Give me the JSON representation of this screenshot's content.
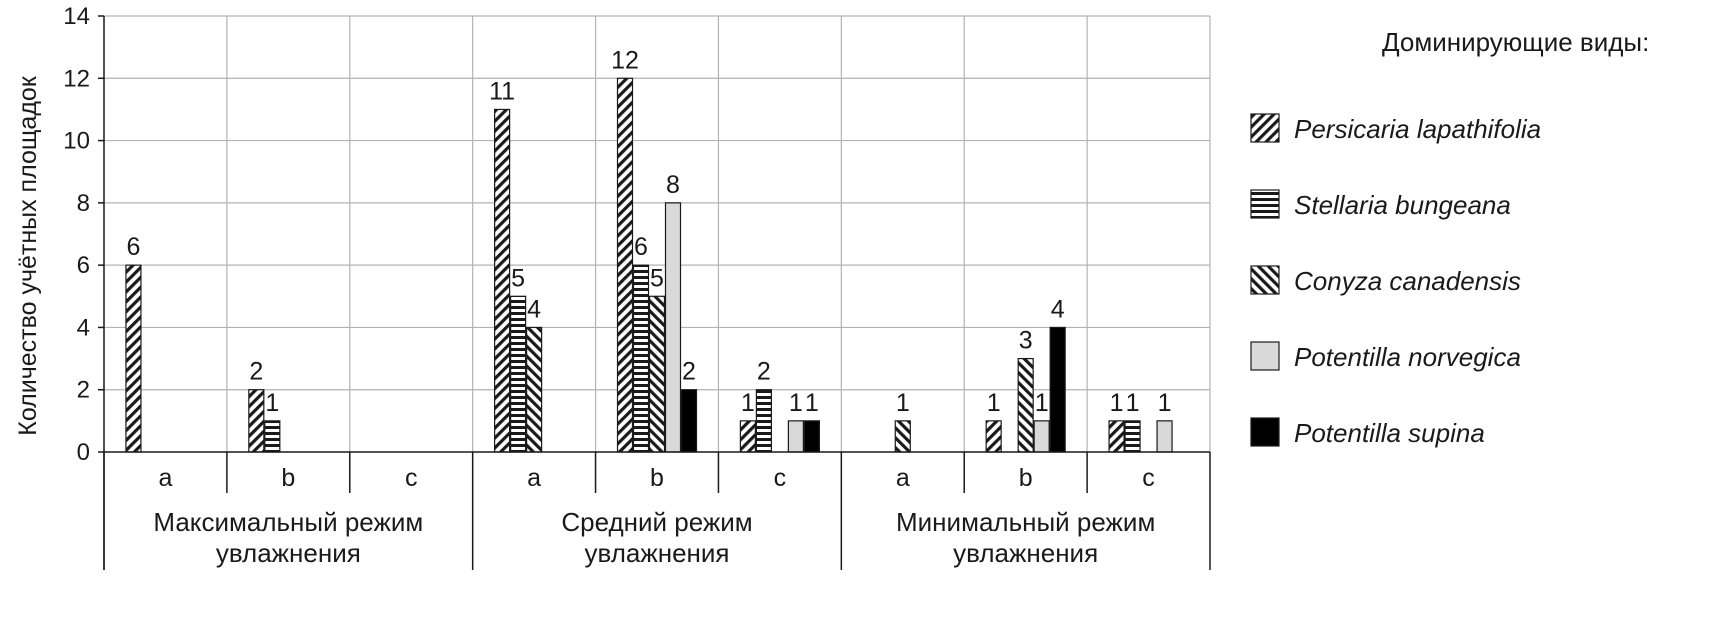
{
  "chart_data": {
    "type": "bar",
    "ylabel": "Количество  учётных  площадок",
    "ylim": [
      0,
      14
    ],
    "yticks": [
      0,
      2,
      4,
      6,
      8,
      10,
      12,
      14
    ],
    "grid": true,
    "legend_title": "Доминирующие виды:",
    "legend_position": "right",
    "groups": [
      {
        "label": "Максимальный режим\nувлажнения",
        "subcategories": [
          "a",
          "b",
          "c"
        ]
      },
      {
        "label": "Средний режим\nувлажнения",
        "subcategories": [
          "a",
          "b",
          "c"
        ]
      },
      {
        "label": "Минимальный режим\nувлажнения",
        "subcategories": [
          "a",
          "b",
          "c"
        ]
      }
    ],
    "categories": [
      "Максимальный a",
      "Максимальный b",
      "Максимальный c",
      "Средний a",
      "Средний b",
      "Средний c",
      "Минимальный a",
      "Минимальный b",
      "Минимальный c"
    ],
    "series": [
      {
        "name": "Persicaria lapathifolia",
        "pattern": "diagonal-forward",
        "values": [
          6,
          2,
          null,
          11,
          12,
          1,
          null,
          1,
          1
        ]
      },
      {
        "name": "Stellaria bungeana",
        "pattern": "horizontal",
        "values": [
          null,
          1,
          null,
          5,
          6,
          2,
          null,
          null,
          1
        ]
      },
      {
        "name": "Conyza canadensis",
        "pattern": "diagonal-back",
        "values": [
          null,
          null,
          null,
          4,
          5,
          null,
          1,
          3,
          null
        ]
      },
      {
        "name": "Potentilla norvegica",
        "pattern": "solid-light",
        "color": "#d9d9d9",
        "values": [
          null,
          null,
          null,
          null,
          8,
          1,
          null,
          1,
          1
        ]
      },
      {
        "name": "Potentilla supina",
        "pattern": "solid-dark",
        "color": "#000000",
        "values": [
          null,
          null,
          null,
          null,
          2,
          1,
          null,
          4,
          null
        ]
      }
    ]
  }
}
